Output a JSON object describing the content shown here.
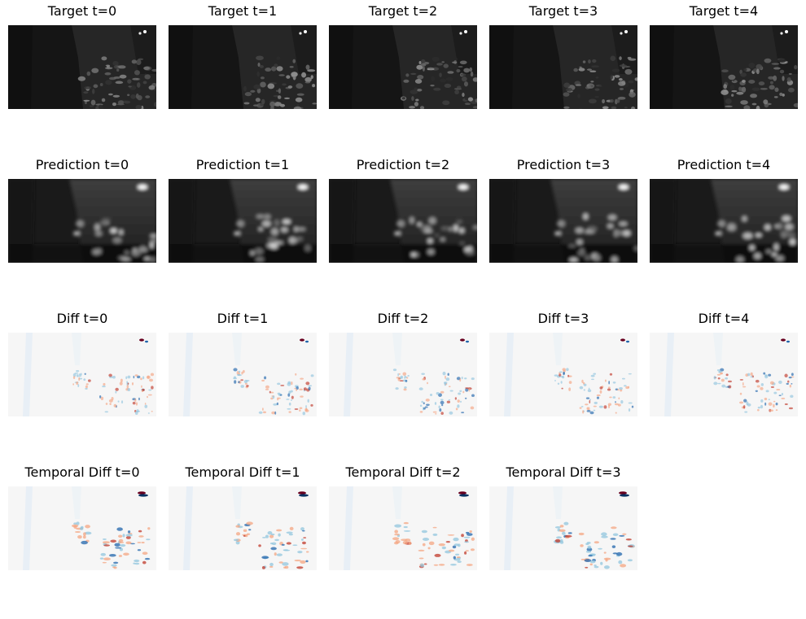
{
  "figure": {
    "rows": [
      {
        "kind": "target",
        "titles": [
          "Target t=0",
          "Target t=1",
          "Target t=2",
          "Target t=3",
          "Target t=4"
        ]
      },
      {
        "kind": "prediction",
        "titles": [
          "Prediction t=0",
          "Prediction t=1",
          "Prediction t=2",
          "Prediction t=3",
          "Prediction t=4"
        ]
      },
      {
        "kind": "diff",
        "titles": [
          "Diff t=0",
          "Diff t=1",
          "Diff t=2",
          "Diff t=3",
          "Diff t=4"
        ]
      },
      {
        "kind": "temporal-diff",
        "titles": [
          "Temporal Diff t=0",
          "Temporal Diff t=1",
          "Temporal Diff t=2",
          "Temporal Diff t=3"
        ]
      }
    ],
    "colormaps": {
      "grayscale": [
        "#000000",
        "#ffffff"
      ],
      "diverging": [
        "#053061",
        "#f7f7f7",
        "#67001f"
      ]
    }
  }
}
